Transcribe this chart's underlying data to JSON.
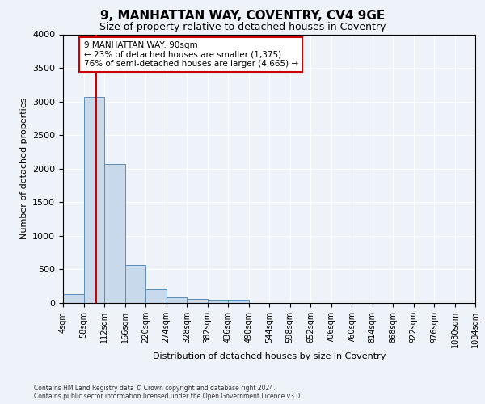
{
  "title": "9, MANHATTAN WAY, COVENTRY, CV4 9GE",
  "subtitle": "Size of property relative to detached houses in Coventry",
  "xlabel": "Distribution of detached houses by size in Coventry",
  "ylabel": "Number of detached properties",
  "bin_edges": [
    4,
    58,
    112,
    166,
    220,
    274,
    328,
    382,
    436,
    490,
    544,
    598,
    652,
    706,
    760,
    814,
    868,
    922,
    976,
    1030,
    1084
  ],
  "bar_heights": [
    130,
    3070,
    2070,
    560,
    200,
    90,
    60,
    50,
    50,
    0,
    0,
    0,
    0,
    0,
    0,
    0,
    0,
    0,
    0,
    0
  ],
  "bar_color": "#c9d9ec",
  "bar_edge_color": "#5b8db8",
  "property_size": 90,
  "property_line_color": "#cc0000",
  "annotation_line1": "9 MANHATTAN WAY: 90sqm",
  "annotation_line2": "← 23% of detached houses are smaller (1,375)",
  "annotation_line3": "76% of semi-detached houses are larger (4,665) →",
  "annotation_box_color": "#cc0000",
  "ylim": [
    0,
    4000
  ],
  "yticks": [
    0,
    500,
    1000,
    1500,
    2000,
    2500,
    3000,
    3500,
    4000
  ],
  "footer_line1": "Contains HM Land Registry data © Crown copyright and database right 2024.",
  "footer_line2": "Contains public sector information licensed under the Open Government Licence v3.0.",
  "background_color": "#eef2f9",
  "grid_color": "#ffffff",
  "title_fontsize": 11,
  "subtitle_fontsize": 9,
  "axis_label_fontsize": 8,
  "tick_fontsize": 7,
  "annotation_fontsize": 7.5
}
